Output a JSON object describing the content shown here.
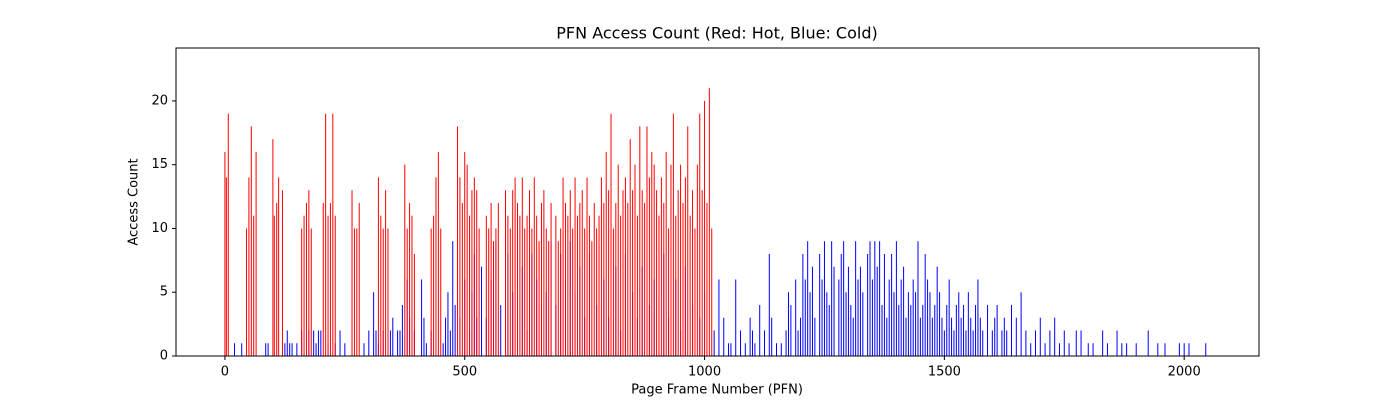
{
  "chart_data": {
    "type": "bar",
    "title": "PFN Access Count (Red: Hot, Blue: Cold)",
    "x_label": "Page Frame Number (PFN)",
    "y_label": "Access Count",
    "xlim": [
      -102,
      2156
    ],
    "ylim": [
      0,
      24.15
    ],
    "xticks": [
      0,
      500,
      1000,
      1500,
      2000
    ],
    "yticks": [
      0,
      5,
      10,
      15,
      20
    ],
    "bar_width": 1,
    "series": [
      {
        "color": "#0000ff",
        "x": [
          20,
          35,
          45,
          85,
          90,
          125,
          130,
          135,
          140,
          150,
          160,
          175,
          185,
          190,
          195,
          200,
          215,
          230,
          240,
          250,
          290,
          300,
          310,
          315,
          320,
          330,
          345,
          350,
          360,
          365,
          370,
          380,
          385,
          395,
          410,
          415,
          420,
          430,
          455,
          460,
          465,
          470,
          475,
          480,
          490,
          500,
          510,
          515,
          520,
          525,
          535,
          545,
          555,
          565,
          575,
          590,
          600,
          610,
          620,
          630,
          640,
          650,
          660,
          670,
          680,
          690,
          700,
          710,
          720,
          730,
          740,
          750,
          760,
          775,
          790,
          800,
          815,
          825,
          835,
          850,
          860,
          870,
          885,
          895,
          905,
          915,
          925,
          940,
          950,
          960,
          975,
          990,
          1000,
          1020,
          1030,
          1040,
          1050,
          1055,
          1065,
          1075,
          1085,
          1095,
          1100,
          1105,
          1115,
          1125,
          1135,
          1140,
          1150,
          1160,
          1170,
          1175,
          1180,
          1190,
          1195,
          1200,
          1205,
          1210,
          1215,
          1220,
          1225,
          1230,
          1240,
          1245,
          1250,
          1255,
          1260,
          1265,
          1270,
          1280,
          1285,
          1290,
          1295,
          1300,
          1305,
          1310,
          1315,
          1320,
          1325,
          1330,
          1340,
          1345,
          1350,
          1355,
          1360,
          1365,
          1370,
          1375,
          1380,
          1385,
          1390,
          1395,
          1400,
          1405,
          1410,
          1415,
          1420,
          1425,
          1430,
          1435,
          1440,
          1445,
          1450,
          1455,
          1460,
          1465,
          1470,
          1475,
          1480,
          1485,
          1490,
          1495,
          1500,
          1505,
          1510,
          1515,
          1520,
          1525,
          1530,
          1535,
          1540,
          1545,
          1550,
          1555,
          1560,
          1565,
          1570,
          1575,
          1580,
          1590,
          1600,
          1605,
          1610,
          1620,
          1625,
          1630,
          1640,
          1650,
          1660,
          1670,
          1680,
          1690,
          1700,
          1710,
          1720,
          1730,
          1740,
          1750,
          1760,
          1775,
          1785,
          1800,
          1810,
          1830,
          1840,
          1860,
          1870,
          1880,
          1900,
          1925,
          1945,
          1960,
          1990,
          2000,
          2010,
          2045
        ],
        "values": [
          1,
          1,
          1,
          1,
          1,
          1,
          2,
          1,
          1,
          1,
          2,
          2,
          2,
          1,
          2,
          2,
          1,
          1,
          2,
          1,
          1,
          2,
          5,
          2,
          1,
          2,
          2,
          3,
          2,
          2,
          4,
          6,
          3,
          2,
          6,
          3,
          1,
          2,
          1,
          3,
          5,
          2,
          9,
          4,
          3,
          6,
          2,
          5,
          8,
          3,
          7,
          3,
          6,
          9,
          4,
          8,
          5,
          3,
          7,
          2,
          8,
          6,
          4,
          5,
          9,
          4,
          8,
          6,
          9,
          5,
          7,
          3,
          8,
          4,
          6,
          3,
          7,
          2,
          8,
          5,
          3,
          7,
          4,
          6,
          5,
          8,
          3,
          6,
          2,
          7,
          4,
          3,
          5,
          2,
          6,
          3,
          1,
          1,
          6,
          2,
          1,
          3,
          2,
          1,
          4,
          2,
          8,
          3,
          1,
          1,
          2,
          5,
          4,
          6,
          2,
          3,
          8,
          6,
          9,
          5,
          7,
          3,
          8,
          6,
          9,
          5,
          4,
          9,
          7,
          6,
          8,
          9,
          5,
          7,
          4,
          3,
          9,
          6,
          7,
          5,
          8,
          9,
          6,
          9,
          7,
          9,
          4,
          8,
          3,
          6,
          8,
          5,
          9,
          4,
          6,
          7,
          3,
          5,
          4,
          6,
          5,
          9,
          3,
          4,
          8,
          6,
          5,
          3,
          4,
          7,
          5,
          3,
          2,
          4,
          6,
          3,
          2,
          4,
          5,
          3,
          4,
          2,
          5,
          3,
          2,
          4,
          6,
          3,
          2,
          4,
          2,
          3,
          4,
          2,
          3,
          2,
          4,
          3,
          5,
          2,
          1,
          2,
          3,
          1,
          2,
          3,
          1,
          2,
          1,
          2,
          2,
          1,
          1,
          2,
          1,
          2,
          1,
          1,
          1,
          2,
          1,
          1,
          1,
          1,
          1,
          1
        ]
      },
      {
        "color": "#ff0000",
        "x": [
          0,
          3,
          7,
          45,
          50,
          55,
          60,
          65,
          100,
          103,
          108,
          112,
          120,
          160,
          165,
          170,
          175,
          180,
          205,
          210,
          215,
          220,
          225,
          230,
          265,
          270,
          275,
          280,
          320,
          325,
          330,
          335,
          340,
          375,
          380,
          385,
          390,
          395,
          430,
          435,
          440,
          445,
          450,
          485,
          490,
          495,
          500,
          505,
          510,
          515,
          520,
          525,
          530,
          545,
          550,
          555,
          560,
          565,
          570,
          585,
          590,
          595,
          600,
          605,
          610,
          615,
          620,
          625,
          630,
          635,
          640,
          645,
          650,
          655,
          660,
          665,
          670,
          675,
          680,
          690,
          695,
          700,
          705,
          710,
          715,
          720,
          725,
          730,
          735,
          740,
          745,
          750,
          755,
          760,
          765,
          770,
          775,
          780,
          785,
          790,
          795,
          800,
          805,
          810,
          815,
          820,
          825,
          830,
          835,
          840,
          845,
          850,
          855,
          860,
          865,
          870,
          875,
          880,
          885,
          890,
          895,
          900,
          905,
          910,
          915,
          920,
          925,
          930,
          935,
          940,
          945,
          950,
          955,
          960,
          965,
          970,
          975,
          980,
          985,
          990,
          995,
          1000,
          1005,
          1010,
          1015
        ],
        "values": [
          16,
          14,
          19,
          10,
          14,
          18,
          11,
          16,
          17,
          11,
          12,
          14,
          13,
          10,
          11,
          12,
          13,
          10,
          12,
          19,
          11,
          12,
          19,
          11,
          13,
          10,
          10,
          12,
          14,
          11,
          10,
          13,
          10,
          15,
          10,
          12,
          11,
          8,
          10,
          11,
          14,
          16,
          10,
          18,
          14,
          12,
          16,
          15,
          11,
          13,
          14,
          13,
          10,
          11,
          10,
          12,
          9,
          10,
          12,
          13,
          11,
          10,
          13,
          14,
          12,
          11,
          14,
          10,
          11,
          13,
          10,
          14,
          11,
          9,
          12,
          13,
          10,
          9,
          12,
          11,
          9,
          10,
          14,
          12,
          11,
          13,
          10,
          14,
          11,
          12,
          13,
          10,
          14,
          11,
          9,
          12,
          10,
          11,
          14,
          12,
          16,
          13,
          19,
          10,
          12,
          15,
          11,
          13,
          14,
          12,
          17,
          13,
          15,
          11,
          18,
          13,
          12,
          18,
          14,
          16,
          15,
          13,
          11,
          14,
          12,
          16,
          10,
          15,
          19,
          11,
          13,
          15,
          12,
          14,
          18,
          11,
          13,
          10,
          15,
          19,
          13,
          20,
          12,
          21,
          10
        ]
      }
    ]
  }
}
